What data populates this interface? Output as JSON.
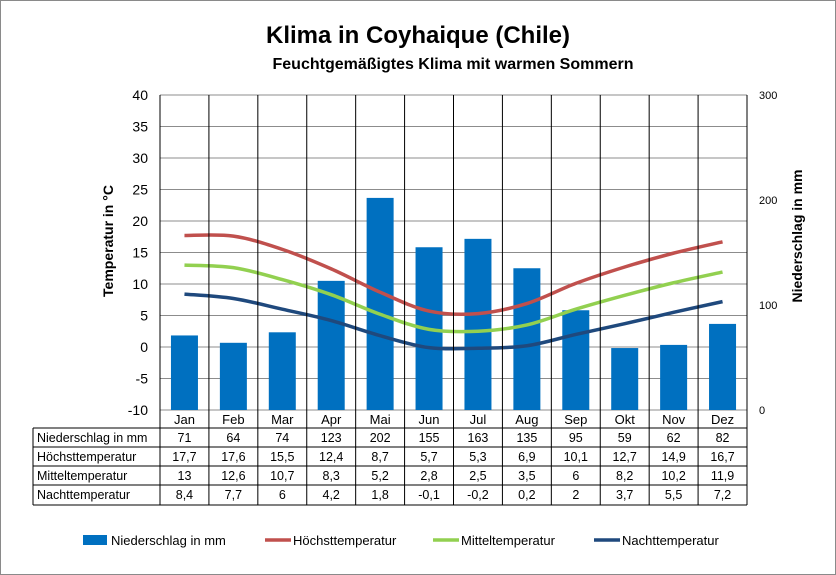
{
  "chart_data": {
    "type": "bar",
    "title": "Klima in Coyhaique (Chile)",
    "subtitle": "Feuchtgemäßigtes Klima mit warmen Sommern",
    "ylabel": "Temperatur in °C",
    "y2label": "Niederschlag in mm",
    "ylim": [
      -10,
      40
    ],
    "y2lim": [
      0,
      300
    ],
    "yticks": [
      "40",
      "35",
      "30",
      "25",
      "20",
      "15",
      "10",
      "5",
      "0",
      "-5",
      "-10"
    ],
    "y2ticks": [
      "300",
      "200",
      "100",
      "0"
    ],
    "grid": true,
    "legend_position": "bottom",
    "categories": [
      "Jan",
      "Feb",
      "Mar",
      "Apr",
      "Mai",
      "Jun",
      "Jul",
      "Aug",
      "Sep",
      "Okt",
      "Nov",
      "Dez"
    ],
    "series": [
      {
        "name": "Niederschlag in mm",
        "type": "bar",
        "axis": "right",
        "color": "#0070c0",
        "values": [
          71,
          64,
          74,
          123,
          202,
          155,
          163,
          135,
          95,
          59,
          62,
          82
        ]
      },
      {
        "name": "Höchsttemperatur",
        "type": "line",
        "axis": "left",
        "color": "#c0504d",
        "values": [
          17.7,
          17.6,
          15.5,
          12.4,
          8.7,
          5.7,
          5.3,
          6.9,
          10.1,
          12.7,
          14.9,
          16.7
        ]
      },
      {
        "name": "Mitteltemperatur",
        "type": "line",
        "axis": "left",
        "color": "#92d050",
        "values": [
          13,
          12.6,
          10.7,
          8.3,
          5.2,
          2.8,
          2.5,
          3.5,
          6,
          8.2,
          10.2,
          11.9
        ]
      },
      {
        "name": "Nachttemperatur",
        "type": "line",
        "axis": "left",
        "color": "#1f497d",
        "values": [
          8.4,
          7.7,
          6,
          4.2,
          1.8,
          -0.1,
          -0.2,
          0.2,
          2,
          3.7,
          5.5,
          7.2
        ]
      }
    ],
    "table": {
      "rows": [
        {
          "label": "Niederschlag in mm",
          "cells": [
            "71",
            "64",
            "74",
            "123",
            "202",
            "155",
            "163",
            "135",
            "95",
            "59",
            "62",
            "82"
          ]
        },
        {
          "label": "Höchsttemperatur",
          "cells": [
            "17,7",
            "17,6",
            "15,5",
            "12,4",
            "8,7",
            "5,7",
            "5,3",
            "6,9",
            "10,1",
            "12,7",
            "14,9",
            "16,7"
          ]
        },
        {
          "label": "Mitteltemperatur",
          "cells": [
            "13",
            "12,6",
            "10,7",
            "8,3",
            "5,2",
            "2,8",
            "2,5",
            "3,5",
            "6",
            "8,2",
            "10,2",
            "11,9"
          ]
        },
        {
          "label": "Nachttemperatur",
          "cells": [
            "8,4",
            "7,7",
            "6",
            "4,2",
            "1,8",
            "-0,1",
            "-0,2",
            "0,2",
            "2",
            "3,7",
            "5,5",
            "7,2"
          ]
        }
      ]
    }
  }
}
